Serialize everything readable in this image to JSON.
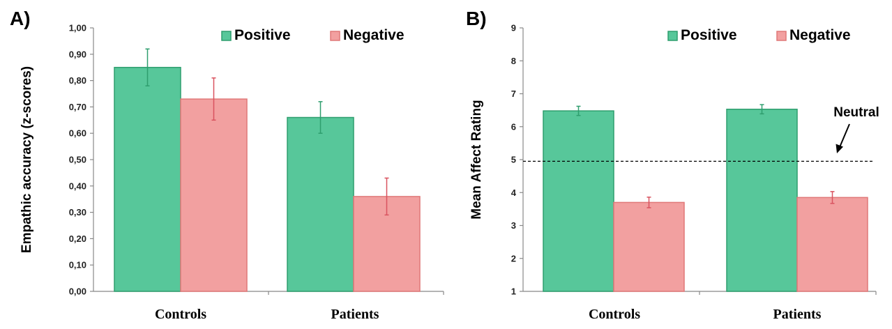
{
  "colors": {
    "positive_fill": "#57c79a",
    "positive_stroke": "#2f9e6e",
    "negative_fill": "#f2a0a0",
    "negative_stroke": "#e07878",
    "positive_err": "#2f9e6e",
    "negative_err": "#d9535f"
  },
  "chart_data": [
    {
      "panel_label": "A)",
      "type": "bar",
      "categories": [
        "Controls",
        "Patients"
      ],
      "series": [
        {
          "name": "Positive",
          "values": [
            0.85,
            0.66
          ],
          "errors": [
            0.07,
            0.06
          ]
        },
        {
          "name": "Negative",
          "values": [
            0.73,
            0.36
          ],
          "errors": [
            0.08,
            0.07
          ]
        }
      ],
      "ylabel": "Empathic accuracy (z-scores)",
      "ylim": [
        0,
        1.0
      ],
      "yticks": [
        "0,00",
        "0,10",
        "0,20",
        "0,30",
        "0,40",
        "0,50",
        "0,60",
        "0,70",
        "0,80",
        "0,90",
        "1,00"
      ],
      "legend": [
        "Positive",
        "Negative"
      ],
      "legend_position": "top-right",
      "grid": false
    },
    {
      "panel_label": "B)",
      "type": "bar",
      "categories": [
        "Controls",
        "Patients"
      ],
      "series": [
        {
          "name": "Positive",
          "values": [
            6.48,
            6.53
          ],
          "errors": [
            0.14,
            0.14
          ]
        },
        {
          "name": "Negative",
          "values": [
            3.7,
            3.85
          ],
          "errors": [
            0.16,
            0.18
          ]
        }
      ],
      "ylabel": "Mean Affect Rating",
      "ylim": [
        1,
        9
      ],
      "yticks": [
        "1",
        "2",
        "3",
        "4",
        "5",
        "6",
        "7",
        "8",
        "9"
      ],
      "legend": [
        "Positive",
        "Negative"
      ],
      "legend_position": "top-right",
      "reference_line": {
        "value": 4.95,
        "label": "Neutral",
        "style": "dashed"
      },
      "grid": false
    }
  ]
}
